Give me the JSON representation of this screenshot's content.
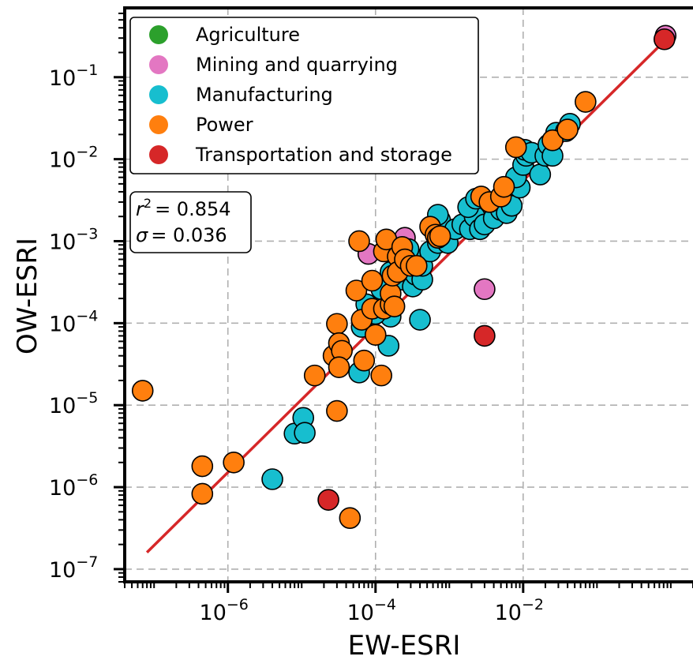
{
  "chart_data": {
    "type": "scatter",
    "xlabel": "EW-ESRI",
    "ylabel": "OW-ESRI",
    "xscale": "log",
    "yscale": "log",
    "xlim": [
      4e-08,
      2.0
    ],
    "ylim": [
      7e-08,
      0.7
    ],
    "x_ticks": [
      1e-06,
      0.0001,
      0.01
    ],
    "x_tick_labels": [
      {
        "base": "10",
        "exp": "−6"
      },
      {
        "base": "10",
        "exp": "−4"
      },
      {
        "base": "10",
        "exp": "−2"
      }
    ],
    "y_ticks": [
      1e-07,
      1e-06,
      1e-05,
      0.0001,
      0.001,
      0.01,
      0.1
    ],
    "y_tick_labels": [
      {
        "base": "10",
        "exp": "−7"
      },
      {
        "base": "10",
        "exp": "−6"
      },
      {
        "base": "10",
        "exp": "−5"
      },
      {
        "base": "10",
        "exp": "−4"
      },
      {
        "base": "10",
        "exp": "−3"
      },
      {
        "base": "10",
        "exp": "−2"
      },
      {
        "base": "10",
        "exp": "−1"
      }
    ],
    "grid": true,
    "legend_position": "top-left",
    "fit_line": {
      "color": "#d62728",
      "x": [
        8e-08,
        0.9
      ],
      "y": [
        1.6e-07,
        0.3
      ]
    },
    "stats": {
      "r2_label": "r",
      "r2_value": "= 0.854",
      "sigma_label": "σ",
      "sigma_value": "= 0.036"
    },
    "series": [
      {
        "name": "Agriculture",
        "color": "#2ca02c",
        "points": [
          [
            3e-05,
            4e-05
          ]
        ]
      },
      {
        "name": "Mining and quarrying",
        "color": "#e377c2",
        "points": [
          [
            0.85,
            0.32
          ],
          [
            8e-05,
            0.0007
          ],
          [
            0.00025,
            0.0011
          ],
          [
            0.003,
            0.00026
          ]
        ]
      },
      {
        "name": "Manufacturing",
        "color": "#17becf",
        "points": [
          [
            4e-06,
            1.25e-06
          ],
          [
            8e-06,
            4.5e-06
          ],
          [
            1.05e-05,
            7e-06
          ],
          [
            1.1e-05,
            4.6e-06
          ],
          [
            6e-05,
            2.5e-05
          ],
          [
            0.00015,
            5.3e-05
          ],
          [
            0.00016,
            0.00012
          ],
          [
            0.0004,
            0.00011
          ],
          [
            6.5e-05,
            9e-05
          ],
          [
            7.5e-05,
            0.00017
          ],
          [
            0.0001,
            0.00013
          ],
          [
            0.00012,
            0.00026
          ],
          [
            0.00016,
            0.00042
          ],
          [
            0.00023,
            0.00034
          ],
          [
            0.00032,
            0.00028
          ],
          [
            0.00035,
            0.00039
          ],
          [
            0.00043,
            0.00034
          ],
          [
            0.00035,
            0.0006
          ],
          [
            0.00043,
            0.0005
          ],
          [
            0.00055,
            0.00075
          ],
          [
            0.0007,
            0.00095
          ],
          [
            0.00095,
            0.00095
          ],
          [
            0.00028,
            0.0008
          ],
          [
            0.0006,
            0.00155
          ],
          [
            0.00075,
            0.0018
          ],
          [
            0.0007,
            0.0021
          ],
          [
            0.0012,
            0.0014
          ],
          [
            0.0015,
            0.0016
          ],
          [
            0.0019,
            0.0014
          ],
          [
            0.0022,
            0.002
          ],
          [
            0.0018,
            0.0026
          ],
          [
            0.0026,
            0.0014
          ],
          [
            0.0023,
            0.0033
          ],
          [
            0.003,
            0.0016
          ],
          [
            0.004,
            0.0019
          ],
          [
            0.005,
            0.0024
          ],
          [
            0.006,
            0.0022
          ],
          [
            0.007,
            0.0027
          ],
          [
            0.009,
            0.0045
          ],
          [
            0.008,
            0.006
          ],
          [
            0.01,
            0.0085
          ],
          [
            0.011,
            0.011
          ],
          [
            0.0105,
            0.013
          ],
          [
            0.013,
            0.012
          ],
          [
            0.017,
            0.0065
          ],
          [
            0.02,
            0.011
          ],
          [
            0.022,
            0.015
          ],
          [
            0.025,
            0.011
          ],
          [
            0.028,
            0.021
          ],
          [
            0.038,
            0.022
          ],
          [
            0.043,
            0.027
          ]
        ]
      },
      {
        "name": "Power",
        "color": "#ff7f0e",
        "points": [
          [
            7e-08,
            1.5e-05
          ],
          [
            4.5e-07,
            1.8e-06
          ],
          [
            4.5e-07,
            8.3e-07
          ],
          [
            1.2e-06,
            2e-06
          ],
          [
            1.5e-05,
            2.3e-05
          ],
          [
            2.7e-05,
            4e-05
          ],
          [
            3e-05,
            9.8e-05
          ],
          [
            3.2e-05,
            5.7e-05
          ],
          [
            3.5e-05,
            4.6e-05
          ],
          [
            3.2e-05,
            2.9e-05
          ],
          [
            3e-05,
            8.5e-06
          ],
          [
            4.5e-05,
            4.2e-07
          ],
          [
            5.5e-05,
            0.00025
          ],
          [
            6e-05,
            0.001
          ],
          [
            6.5e-05,
            0.00011
          ],
          [
            7e-05,
            3.5e-05
          ],
          [
            9e-05,
            0.00033
          ],
          [
            9e-05,
            0.00015
          ],
          [
            0.0001,
            7.2e-05
          ],
          [
            0.00012,
            2.3e-05
          ],
          [
            0.00013,
            0.00015
          ],
          [
            0.00013,
            0.00075
          ],
          [
            0.00014,
            0.00105
          ],
          [
            0.00016,
            0.00017
          ],
          [
            0.00016,
            0.00023
          ],
          [
            0.00017,
            0.00038
          ],
          [
            0.00018,
            0.00016
          ],
          [
            0.0002,
            0.00065
          ],
          [
            0.0002,
            0.00042
          ],
          [
            0.00023,
            0.00085
          ],
          [
            0.00025,
            0.0006
          ],
          [
            0.0003,
            0.0005
          ],
          [
            0.00036,
            0.0005
          ],
          [
            0.00055,
            0.0015
          ],
          [
            0.00065,
            0.0012
          ],
          [
            0.0007,
            0.0011
          ],
          [
            0.00075,
            0.00115
          ],
          [
            0.0027,
            0.0035
          ],
          [
            0.0035,
            0.003
          ],
          [
            0.005,
            0.0035
          ],
          [
            0.0055,
            0.0046
          ],
          [
            0.008,
            0.014
          ],
          [
            0.025,
            0.017
          ],
          [
            0.04,
            0.023
          ],
          [
            0.07,
            0.05
          ]
        ]
      },
      {
        "name": "Transportation and storage",
        "color": "#d62728",
        "points": [
          [
            0.82,
            0.29
          ],
          [
            2.3e-05,
            7e-07
          ],
          [
            0.003,
            7e-05
          ]
        ]
      }
    ]
  }
}
